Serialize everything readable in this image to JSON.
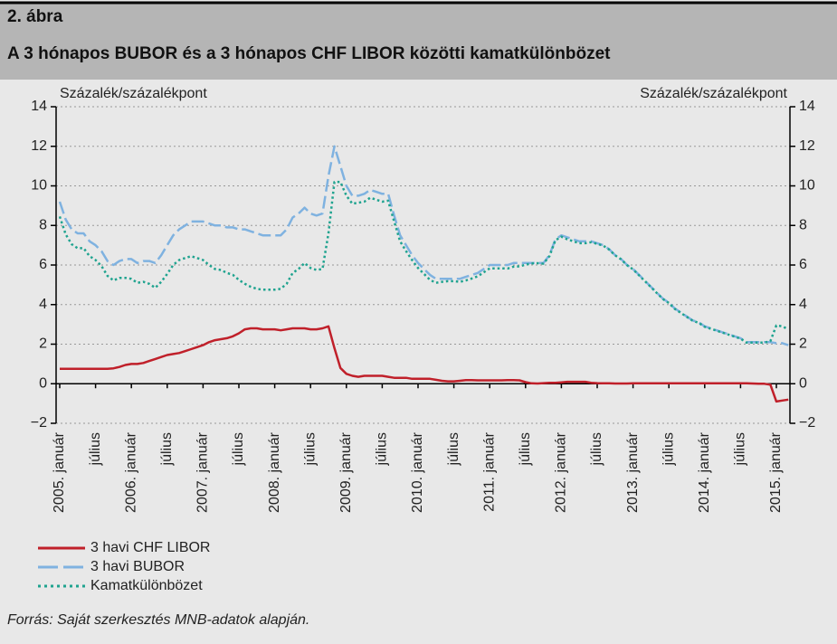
{
  "header": {
    "number": "2. ábra",
    "title": "A 3 hónapos BUBOR és a 3 hónapos CHF LIBOR közötti kamatkülönbözet"
  },
  "chart_data": {
    "type": "line",
    "y_label": "Százalék/százalékpont",
    "y2_label": "Százalék/százalékpont",
    "categories": [
      "2005. január",
      null,
      null,
      null,
      null,
      null,
      "július",
      null,
      null,
      null,
      null,
      null,
      "2006. január",
      null,
      null,
      null,
      null,
      null,
      "július",
      null,
      null,
      null,
      null,
      null,
      "2007. január",
      null,
      null,
      null,
      null,
      null,
      "július",
      null,
      null,
      null,
      null,
      null,
      "2008. január",
      null,
      null,
      null,
      null,
      null,
      "július",
      null,
      null,
      null,
      null,
      null,
      "2009. január",
      null,
      null,
      null,
      null,
      null,
      "július",
      null,
      null,
      null,
      null,
      null,
      "2010. január",
      null,
      null,
      null,
      null,
      null,
      "július",
      null,
      null,
      null,
      null,
      null,
      "2011. január",
      null,
      null,
      null,
      null,
      null,
      "július",
      null,
      null,
      null,
      null,
      null,
      "2012. január",
      null,
      null,
      null,
      null,
      null,
      "július",
      null,
      null,
      null,
      null,
      null,
      "2013. január",
      null,
      null,
      null,
      null,
      null,
      "július",
      null,
      null,
      null,
      null,
      null,
      "2014. január",
      null,
      null,
      null,
      null,
      null,
      "július",
      null,
      null,
      null,
      null,
      null,
      "2015. január",
      null,
      null
    ],
    "series": [
      {
        "name": "3 havi CHF LIBOR",
        "color": "#c0202a",
        "style": "solid",
        "values": [
          0.75,
          0.75,
          0.75,
          0.75,
          0.75,
          0.75,
          0.75,
          0.75,
          0.75,
          0.78,
          0.85,
          0.95,
          1.0,
          1.0,
          1.05,
          1.15,
          1.25,
          1.35,
          1.45,
          1.5,
          1.55,
          1.65,
          1.75,
          1.85,
          1.95,
          2.1,
          2.2,
          2.25,
          2.3,
          2.4,
          2.55,
          2.75,
          2.8,
          2.8,
          2.75,
          2.75,
          2.75,
          2.7,
          2.75,
          2.8,
          2.8,
          2.8,
          2.75,
          2.75,
          2.8,
          2.9,
          1.8,
          0.8,
          0.5,
          0.4,
          0.35,
          0.4,
          0.4,
          0.4,
          0.4,
          0.35,
          0.3,
          0.3,
          0.3,
          0.25,
          0.25,
          0.25,
          0.25,
          0.2,
          0.15,
          0.12,
          0.12,
          0.15,
          0.18,
          0.18,
          0.17,
          0.17,
          0.17,
          0.17,
          0.17,
          0.18,
          0.18,
          0.17,
          0.08,
          0.02,
          0.01,
          0.03,
          0.05,
          0.05,
          0.07,
          0.1,
          0.1,
          0.1,
          0.1,
          0.05,
          0.03,
          0.02,
          0.02,
          0.01,
          0.01,
          0.01,
          0.02,
          0.02,
          0.02,
          0.02,
          0.02,
          0.02,
          0.02,
          0.02,
          0.02,
          0.02,
          0.02,
          0.02,
          0.02,
          0.02,
          0.02,
          0.02,
          0.02,
          0.02,
          0.02,
          0.02,
          0.01,
          0.0,
          0.0,
          -0.05,
          -0.9,
          -0.85,
          -0.8
        ]
      },
      {
        "name": "3 havi BUBOR",
        "color": "#7fb2e0",
        "style": "dashed",
        "values": [
          9.2,
          8.3,
          7.8,
          7.6,
          7.6,
          7.2,
          7.0,
          6.7,
          6.2,
          6.0,
          6.2,
          6.3,
          6.3,
          6.1,
          6.2,
          6.2,
          6.1,
          6.5,
          7.0,
          7.5,
          7.8,
          8.0,
          8.2,
          8.2,
          8.2,
          8.1,
          8.0,
          8.0,
          7.9,
          7.9,
          7.8,
          7.8,
          7.7,
          7.6,
          7.5,
          7.5,
          7.5,
          7.5,
          7.8,
          8.4,
          8.6,
          8.9,
          8.6,
          8.5,
          8.6,
          10.5,
          12.0,
          11.0,
          10.0,
          9.5,
          9.5,
          9.6,
          9.8,
          9.7,
          9.6,
          9.6,
          8.5,
          7.5,
          7.0,
          6.5,
          6.1,
          5.8,
          5.5,
          5.3,
          5.3,
          5.3,
          5.3,
          5.3,
          5.4,
          5.5,
          5.6,
          5.8,
          6.0,
          6.0,
          6.0,
          6.0,
          6.1,
          6.1,
          6.1,
          6.1,
          6.1,
          6.1,
          6.5,
          7.3,
          7.5,
          7.4,
          7.3,
          7.2,
          7.2,
          7.2,
          7.1,
          7.0,
          6.8,
          6.5,
          6.3,
          6.0,
          5.8,
          5.5,
          5.2,
          4.9,
          4.6,
          4.3,
          4.1,
          3.8,
          3.6,
          3.4,
          3.2,
          3.1,
          2.9,
          2.8,
          2.7,
          2.6,
          2.5,
          2.4,
          2.3,
          2.1,
          2.1,
          2.1,
          2.1,
          2.1,
          2.05,
          2.05,
          1.95
        ]
      },
      {
        "name": "Kamatkülönbözet",
        "color": "#1fa38f",
        "style": "dotted",
        "values": [
          8.45,
          7.55,
          7.05,
          6.85,
          6.85,
          6.45,
          6.25,
          5.95,
          5.45,
          5.22,
          5.35,
          5.35,
          5.3,
          5.1,
          5.15,
          5.05,
          4.85,
          5.15,
          5.55,
          6.0,
          6.25,
          6.35,
          6.45,
          6.35,
          6.25,
          6.0,
          5.8,
          5.75,
          5.6,
          5.5,
          5.25,
          5.05,
          4.9,
          4.8,
          4.75,
          4.75,
          4.75,
          4.8,
          5.05,
          5.6,
          5.8,
          6.1,
          5.85,
          5.75,
          5.8,
          7.6,
          10.2,
          10.2,
          9.5,
          9.1,
          9.15,
          9.2,
          9.4,
          9.3,
          9.2,
          9.25,
          8.2,
          7.2,
          6.7,
          6.25,
          5.85,
          5.55,
          5.25,
          5.1,
          5.15,
          5.18,
          5.18,
          5.15,
          5.22,
          5.32,
          5.43,
          5.63,
          5.83,
          5.83,
          5.83,
          5.82,
          5.92,
          5.93,
          6.02,
          6.08,
          6.09,
          6.07,
          6.45,
          7.25,
          7.43,
          7.3,
          7.2,
          7.1,
          7.1,
          7.15,
          7.07,
          6.98,
          6.78,
          6.49,
          6.29,
          5.99,
          5.78,
          5.48,
          5.18,
          4.88,
          4.58,
          4.28,
          4.08,
          3.78,
          3.58,
          3.38,
          3.18,
          3.08,
          2.88,
          2.78,
          2.68,
          2.58,
          2.48,
          2.38,
          2.28,
          2.08,
          2.08,
          2.08,
          2.08,
          2.15,
          2.95,
          2.9,
          2.75
        ]
      }
    ],
    "ylim": [
      -2,
      14
    ],
    "yticks": [
      {
        "value": -2,
        "label": "−2"
      },
      0,
      2,
      4,
      6,
      8,
      10,
      12,
      14
    ],
    "y2lim": [
      -2,
      14
    ],
    "y2ticks": [
      {
        "value": -2,
        "label": "−2"
      },
      0,
      2,
      4,
      6,
      8,
      10,
      12,
      14
    ],
    "grid": true,
    "legend": "bottom-left"
  },
  "source": "Forrás: Saját szerkesztés MNB-adatok alapján."
}
